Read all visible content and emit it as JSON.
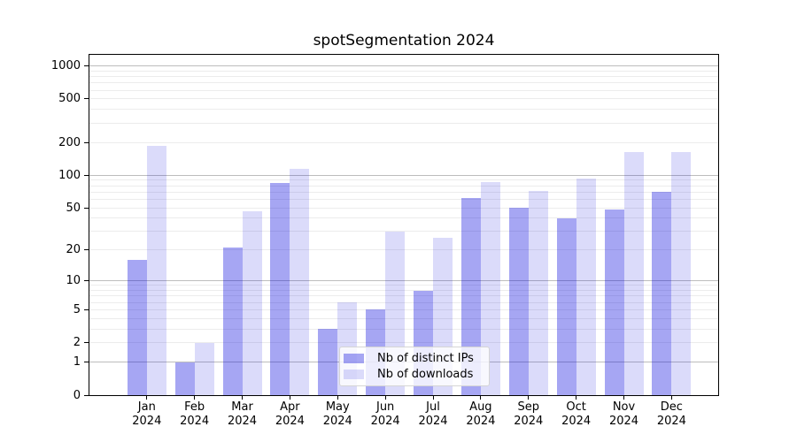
{
  "chart_data": {
    "type": "bar",
    "title": "spotSegmentation 2024",
    "categories": [
      "Jan 2024",
      "Feb 2024",
      "Mar 2024",
      "Apr 2024",
      "May 2024",
      "Jun 2024",
      "Jul 2024",
      "Aug 2024",
      "Sep 2024",
      "Oct 2024",
      "Nov 2024",
      "Dec 2024"
    ],
    "series": [
      {
        "name": "Nb of distinct IPs",
        "color": "rgba(0,0,220,0.35)",
        "values": [
          16,
          1,
          21,
          85,
          3,
          5,
          8,
          62,
          50,
          40,
          48,
          71
        ]
      },
      {
        "name": "Nb of downloads",
        "color": "rgba(0,0,220,0.14)",
        "values": [
          185,
          2,
          46,
          114,
          6,
          30,
          26,
          87,
          72,
          94,
          164,
          164
        ]
      }
    ],
    "yscale": "log1p",
    "ylim": [
      0,
      1264
    ],
    "yticks": [
      0,
      1,
      2,
      5,
      10,
      20,
      50,
      100,
      200,
      500,
      1000
    ],
    "major_gridline_values": [
      1,
      10,
      100,
      1000
    ],
    "minor_gridline_values": [
      2,
      3,
      4,
      5,
      6,
      7,
      8,
      9,
      20,
      30,
      40,
      50,
      60,
      70,
      80,
      90,
      200,
      300,
      400,
      500,
      600,
      700,
      800,
      900
    ],
    "grid": true,
    "legend_position": "lower center",
    "colors": {
      "major_grid": "#bdbdbd",
      "minor_grid": "#ececec",
      "spine": "#000000",
      "legend_border": "#d5d5d5",
      "legend_bg": "rgba(255,255,255,0.8)"
    }
  }
}
